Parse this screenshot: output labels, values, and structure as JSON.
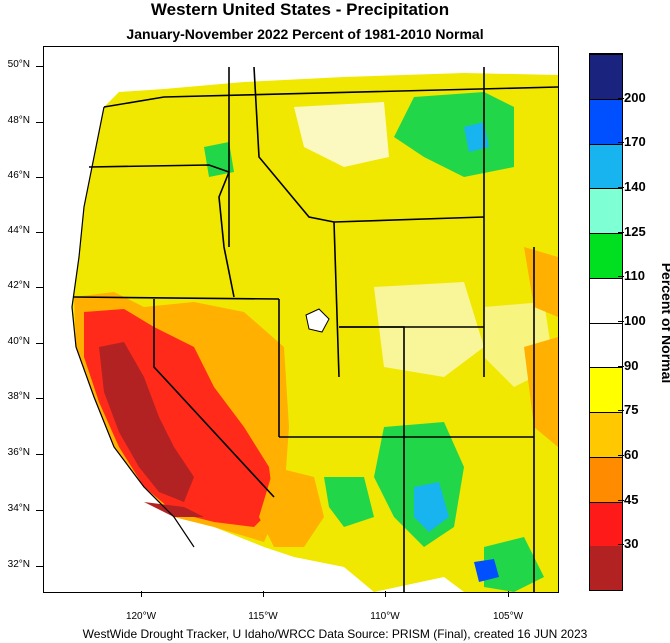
{
  "title": "Western United States - Precipitation",
  "subtitle": "January-November 2022  Percent of 1981-2010 Normal",
  "legend": {
    "title": "Percent of Normal",
    "thresholds": [
      "30",
      "45",
      "60",
      "75",
      "90",
      "100",
      "110",
      "125",
      "140",
      "170",
      "200"
    ],
    "colors": [
      "#b22222",
      "#ff1a1a",
      "#ff8c00",
      "#ffc800",
      "#ffff00",
      "#ffffff",
      "#ffffff",
      "#00e020",
      "#7fffd4",
      "#18b4f0",
      "#0050ff",
      "#1a237e"
    ]
  },
  "latitude_labels": [
    "50°N",
    "48°N",
    "46°N",
    "44°N",
    "42°N",
    "40°N",
    "38°N",
    "36°N",
    "34°N",
    "32°N"
  ],
  "longitude_labels": [
    "120°W",
    "115°W",
    "110°W",
    "105°W"
  ],
  "footer": "WestWide Drought Tracker, U Idaho/WRCC Data Source: PRISM (Final), created 16 JUN 2023"
}
